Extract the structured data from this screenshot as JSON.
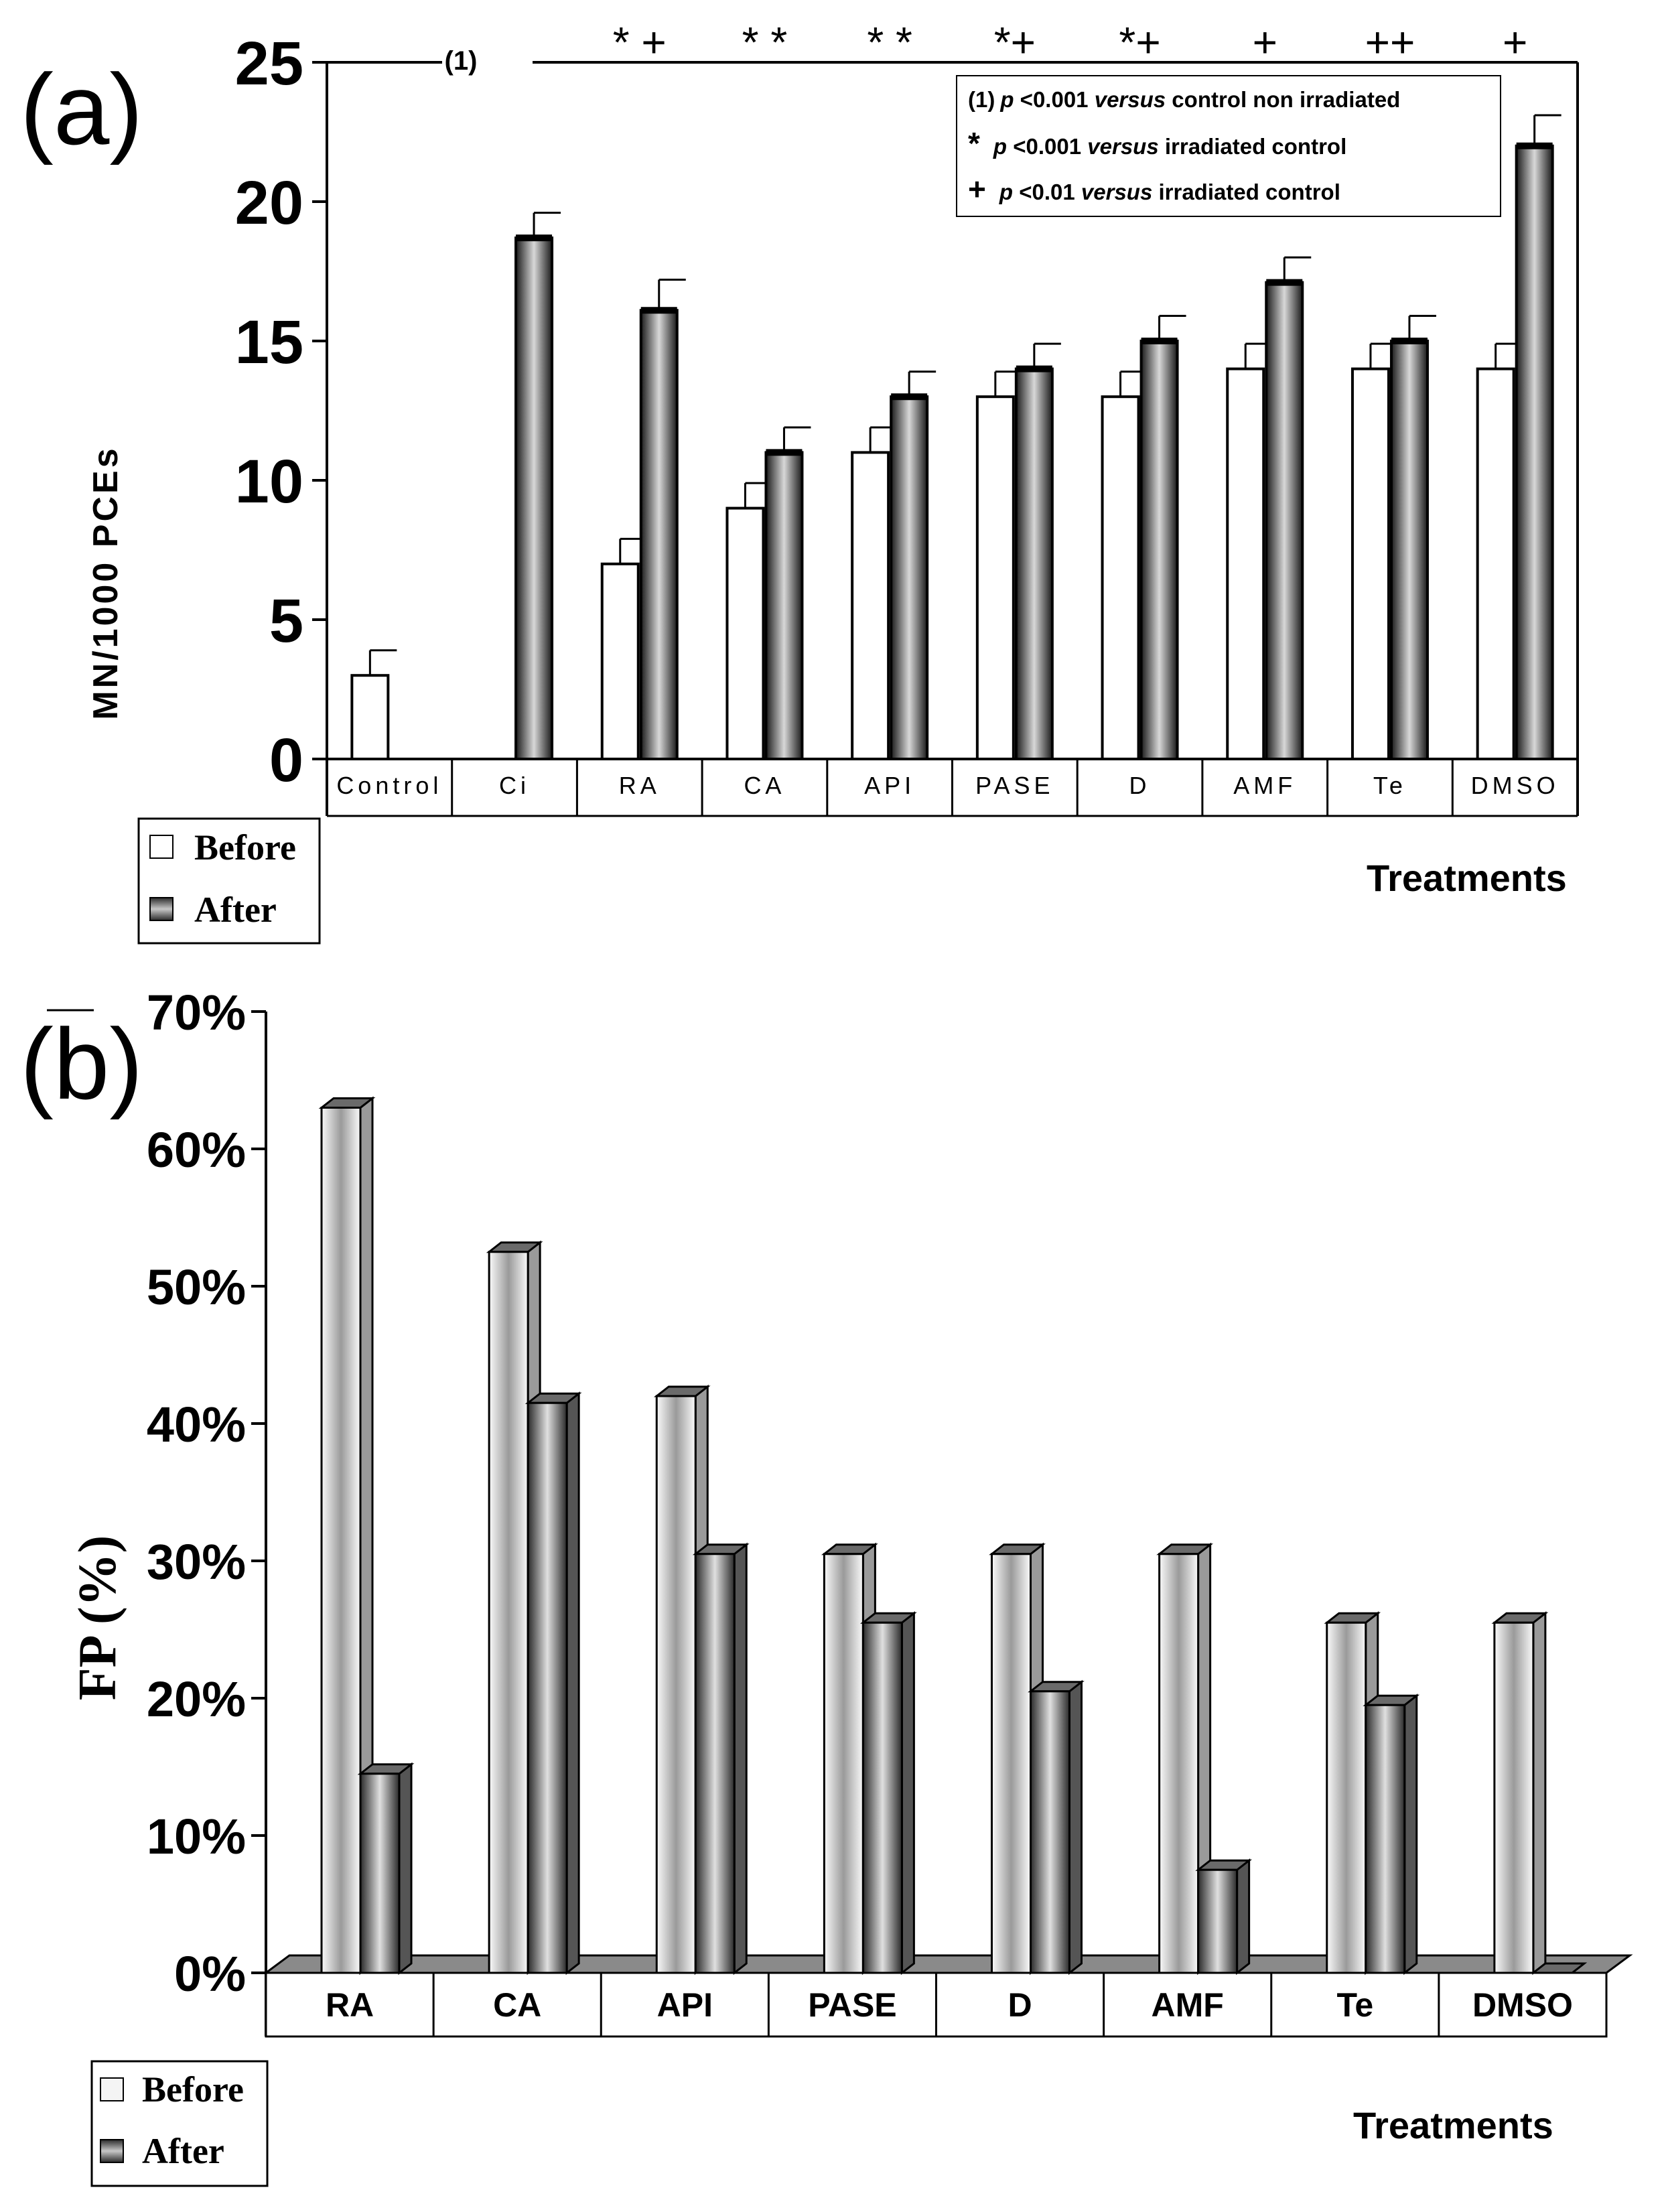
{
  "chart_data": [
    {
      "panel": "(a)",
      "type": "bar",
      "categories": [
        "Control",
        "Ci",
        "RA",
        "CA",
        "API",
        "PASE",
        "D",
        "AMF",
        "Te",
        "DMSO"
      ],
      "series": [
        {
          "name": "Before",
          "values": [
            3,
            null,
            7,
            9,
            11,
            13,
            13,
            14,
            14,
            14
          ],
          "errors": [
            0.9,
            null,
            0.9,
            0.9,
            0.9,
            0.9,
            0.9,
            0.9,
            0.9,
            0.9
          ]
        },
        {
          "name": "After",
          "values": [
            null,
            18.7,
            16.1,
            11,
            13,
            14,
            15,
            17.1,
            15,
            22
          ],
          "errors": [
            null,
            0.9,
            1.1,
            0.9,
            0.9,
            0.9,
            0.9,
            0.9,
            0.9,
            1.1
          ]
        }
      ],
      "ylabel": "MN/1000 PCEs",
      "xlabel": "Treatments",
      "ylim": [
        0,
        25
      ],
      "yticks": [
        "0",
        "5",
        "10",
        "15",
        "20",
        "25"
      ],
      "significance_marks": [
        "* +",
        "* *",
        "* *",
        "*+",
        "*+",
        "+",
        "++",
        "+"
      ],
      "top_line_label": "(1)",
      "notes": [
        {
          "sym": "(1)",
          "p": "p",
          "rest": " <0.001 ",
          "vs": "versus",
          "end": " control non irradiated"
        },
        {
          "sym": "*",
          "p": "p",
          "rest": " <0.001 ",
          "vs": "versus",
          "end": " irradiated control"
        },
        {
          "sym": "+",
          "p": "p",
          "rest": " <0.01    ",
          "vs": "versus",
          "end": " irradiated control"
        }
      ],
      "legend": [
        "Before",
        "After"
      ]
    },
    {
      "panel": "(b)",
      "type": "bar",
      "categories": [
        "RA",
        "CA",
        "API",
        "PASE",
        "D",
        "AMF",
        "Te",
        "DMSO"
      ],
      "series": [
        {
          "name": "Before",
          "values": [
            63,
            52.5,
            42,
            30.5,
            30.5,
            30.5,
            25.5,
            25.5
          ]
        },
        {
          "name": "After",
          "values": [
            14.5,
            41.5,
            30.5,
            25.5,
            20.5,
            7.5,
            19.5,
            0
          ]
        }
      ],
      "ylabel": "FP (%)",
      "xlabel": "Treatments",
      "ylim": [
        0,
        70
      ],
      "yticks": [
        "0%",
        "10%",
        "20%",
        "30%",
        "40%",
        "50%",
        "60%",
        "70%"
      ],
      "legend": [
        "Before",
        "After"
      ]
    }
  ]
}
